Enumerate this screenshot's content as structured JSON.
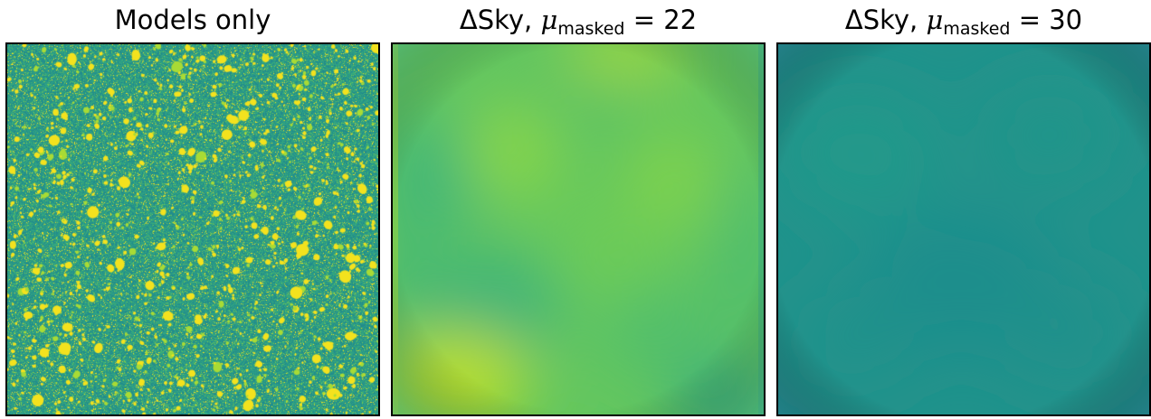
{
  "panels": [
    {
      "id": "models-only",
      "title_plain": "Models only",
      "title_has_math": false,
      "colormap": "viridis",
      "base_color": "#2a9a8a",
      "spot_color": "#f3e21e"
    },
    {
      "id": "dsky-22",
      "title_prefix": "ΔSky, ",
      "title_symbol": "μ",
      "title_subscript": "masked",
      "title_equals": " = 22",
      "title_has_math": true,
      "colormap": "viridis",
      "base_color": "#6cc95a"
    },
    {
      "id": "dsky-30",
      "title_prefix": "ΔSky, ",
      "title_symbol": "μ",
      "title_subscript": "masked",
      "title_equals": " = 30",
      "title_has_math": true,
      "colormap": "viridis",
      "base_color": "#20908c"
    }
  ]
}
